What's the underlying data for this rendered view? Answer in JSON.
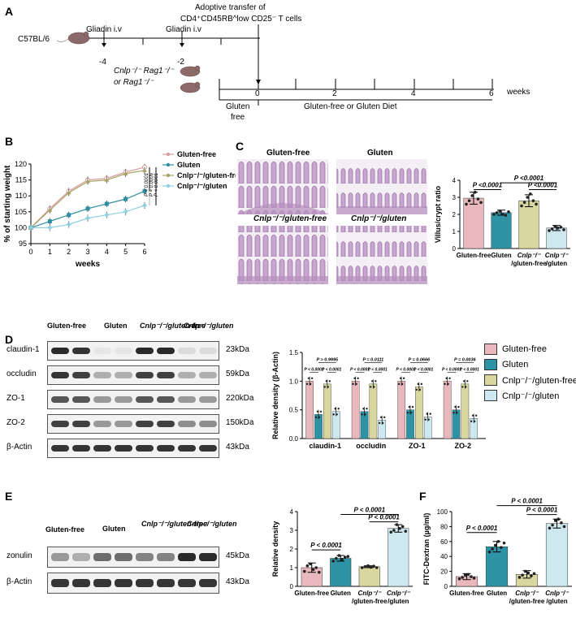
{
  "panels": {
    "A": "A",
    "B": "B",
    "C": "C",
    "D": "D",
    "E": "E",
    "F": "F"
  },
  "panelA": {
    "strain": "C57BL/6",
    "gliadin1": "Gliadin i.v",
    "gliadin2": "Gliadin i.v",
    "transfer_line1": "Adoptive transfer of",
    "transfer_line2": "CD4⁺CD45RB^low CD25⁻ T cells",
    "tick_m4": "-4",
    "tick_m2": "-2",
    "tick_0": "0",
    "tick_2": "2",
    "tick_4": "4",
    "tick_6": "6",
    "weeks": "weeks",
    "recipient1": "Cnlp⁻/⁻ Rag1⁻/⁻",
    "recipient2": "or Rag1⁻/⁻",
    "gluten_free_1": "Gluten",
    "gluten_free_2": "free",
    "diet": "Gluten-free or Gluten Diet"
  },
  "panelC": {
    "img1": "Gluten-free",
    "img2": "Gluten",
    "img3": "Cnlp⁻/⁻/gluten-free",
    "img4": "Cnlp⁻/⁻/gluten"
  },
  "panelD": {
    "lane_groups": [
      "Gluten-free",
      "Gluten",
      "Cnlp⁻/⁻/gluten-free",
      "Cnlp⁻/⁻/gluten"
    ],
    "proteins": [
      "claudin-1",
      "occludin",
      "ZO-1",
      "ZO-2",
      "β-Actin"
    ],
    "sizes": [
      "23kDa",
      "59kDa",
      "220kDa",
      "150kDa",
      "43kDa"
    ]
  },
  "panelE": {
    "lane_groups": [
      "Gluten-free",
      "Gluten",
      "Cnlp⁻/⁻/gluten-free",
      "Cnlp⁻/⁻/gluten"
    ],
    "proteins": [
      "zonulin",
      "β-Actin"
    ],
    "sizes": [
      "45kDa",
      "43kDa"
    ]
  },
  "legend_colors": {
    "gluten_free": "#e8b8bc",
    "gluten": "#2f93a6",
    "cnlp_gluten_free": "#d9d6a0",
    "cnlp_gluten": "#cde8ef"
  },
  "chart_data": [
    {
      "id": "B",
      "type": "line",
      "ylabel": "% of starting weight",
      "xlabel": "weeks",
      "x": [
        0,
        1,
        2,
        3,
        4,
        5,
        6
      ],
      "ylim": [
        95,
        120
      ],
      "yticks": [
        95,
        100,
        105,
        110,
        115,
        120
      ],
      "series": [
        {
          "name": "Gluten-free",
          "values": [
            100,
            106,
            111.5,
            115,
            115.5,
            117.5,
            119
          ],
          "color": "#d79aa0",
          "marker": "circle"
        },
        {
          "name": "Gluten",
          "values": [
            100,
            102,
            104,
            106,
            107.5,
            109,
            111.5
          ],
          "color": "#2f8ea3",
          "marker": "square"
        },
        {
          "name": "Cnlp⁻/⁻/gluten-free",
          "values": [
            100,
            105.5,
            111,
            114.5,
            115,
            117,
            118
          ],
          "color": "#a8a262",
          "marker": "triangle"
        },
        {
          "name": "Cnlp⁻/⁻/gluten",
          "values": [
            100,
            100,
            101,
            103,
            104,
            105,
            107
          ],
          "color": "#8fd0e0",
          "marker": "diamond"
        }
      ],
      "annotations": [
        "P < 0.0001",
        "P = 0.0006",
        "P < 0.0001"
      ]
    },
    {
      "id": "C",
      "type": "bar",
      "ylabel": "Villus/crypt ratio",
      "categories": [
        "Gluten-free",
        "Gluten",
        "Cnlp⁻/⁻ /gluten-free",
        "Cnlp⁻/⁻ /gluten"
      ],
      "values": [
        2.95,
        2.1,
        2.8,
        1.2
      ],
      "errors": [
        0.35,
        0.15,
        0.35,
        0.15
      ],
      "points": [
        [
          2.6,
          2.8,
          3.1,
          3.3,
          2.9,
          2.7
        ],
        [
          2.0,
          2.1,
          2.2,
          2.0,
          1.95,
          2.15
        ],
        [
          2.5,
          2.7,
          3.0,
          3.2,
          2.8,
          2.6
        ],
        [
          1.05,
          1.15,
          1.3,
          1.2,
          1.25,
          1.1
        ]
      ],
      "ylim": [
        0,
        4
      ],
      "yticks": [
        0,
        1,
        2,
        3,
        4
      ],
      "colors": [
        "#e8b8bc",
        "#2f93a6",
        "#d9d6a0",
        "#cde8ef"
      ],
      "brackets": [
        {
          "from": 0,
          "to": 1,
          "label": "P <0.0001",
          "level": 3.45
        },
        {
          "from": 1,
          "to": 3,
          "label": "P <0.0001",
          "level": 3.85
        },
        {
          "from": 2,
          "to": 3,
          "label": "P <0.0001",
          "level": 3.45
        }
      ]
    },
    {
      "id": "D",
      "type": "bar",
      "ylabel": "Relative density (β-Actin)",
      "categories": [
        "claudin-1",
        "occludin",
        "ZO-1",
        "ZO-2"
      ],
      "ylim": [
        0,
        1.5
      ],
      "yticks": [
        0.0,
        0.5,
        1.0,
        1.5
      ],
      "series": [
        {
          "name": "Gluten-free",
          "values": [
            1.0,
            1.0,
            1.0,
            1.0
          ],
          "color": "#e8b8bc"
        },
        {
          "name": "Gluten",
          "values": [
            0.42,
            0.47,
            0.5,
            0.5
          ],
          "color": "#2f93a6"
        },
        {
          "name": "Cnlp⁻/⁻/gluten-free",
          "values": [
            0.95,
            0.95,
            0.9,
            0.95
          ],
          "color": "#d9d6a0"
        },
        {
          "name": "Cnlp⁻/⁻/gluten",
          "values": [
            0.47,
            0.32,
            0.38,
            0.35
          ],
          "color": "#cde8ef"
        }
      ],
      "brackets_top": [
        "P > 0.9995",
        "P = 0.0111",
        "P = 0.0666",
        "P = 0.0036"
      ],
      "brackets_low": [
        "P < 0.0001",
        "P < 0.0001",
        "P < 0.0001",
        "P < 0.0001",
        "P < 0.0001",
        "P < 0.0001",
        "P < 0.0001",
        "P < 0.0001"
      ]
    },
    {
      "id": "E",
      "type": "bar",
      "ylabel": "Relative density",
      "categories": [
        "Gluten-free",
        "Gluten",
        "Cnlp⁻/⁻ /gluten-free",
        "Cnlp⁻/⁻ /gluten"
      ],
      "values": [
        1.0,
        1.5,
        1.05,
        3.1
      ],
      "errors": [
        0.25,
        0.15,
        0.05,
        0.2
      ],
      "points": [
        [
          0.8,
          1.1,
          1.2,
          0.9,
          1.0,
          0.75
        ],
        [
          1.35,
          1.5,
          1.65,
          1.45,
          1.55,
          1.6
        ],
        [
          1.0,
          1.05,
          1.1,
          1.02,
          1.08,
          1.0
        ],
        [
          2.9,
          3.0,
          3.3,
          3.1,
          3.2,
          2.95
        ]
      ],
      "ylim": [
        0,
        4
      ],
      "yticks": [
        0,
        1,
        2,
        3,
        4
      ],
      "colors": [
        "#e8b8bc",
        "#2f93a6",
        "#d9d6a0",
        "#cde8ef"
      ],
      "brackets": [
        {
          "from": 0,
          "to": 1,
          "label": "P < 0.0001",
          "level": 1.95
        },
        {
          "from": 1,
          "to": 3,
          "label": "P < 0.0001",
          "level": 3.85
        },
        {
          "from": 2,
          "to": 3,
          "label": "P < 0.0001",
          "level": 3.45
        }
      ]
    },
    {
      "id": "F",
      "type": "bar",
      "ylabel": "FITC-Dextran (µg/ml)",
      "categories": [
        "Gluten-free",
        "Gluten",
        "Cnlp⁻/⁻ /gluten-free",
        "Cnlp⁻/⁻ /gluten"
      ],
      "values": [
        13,
        53,
        16,
        84
      ],
      "errors": [
        4,
        7,
        5,
        6
      ],
      "points": [
        [
          10,
          12,
          15,
          16,
          13,
          11
        ],
        [
          46,
          50,
          55,
          60,
          52,
          58
        ],
        [
          12,
          15,
          20,
          18,
          14,
          17
        ],
        [
          78,
          82,
          88,
          90,
          85,
          80
        ]
      ],
      "ylim": [
        0,
        100
      ],
      "yticks": [
        0,
        20,
        40,
        60,
        80,
        100
      ],
      "colors": [
        "#e8b8bc",
        "#2f93a6",
        "#d9d6a0",
        "#cde8ef"
      ],
      "brackets": [
        {
          "from": 0,
          "to": 1,
          "label": "P < 0.0001",
          "level": 72
        },
        {
          "from": 1,
          "to": 3,
          "label": "P < 0.0001",
          "level": 108
        },
        {
          "from": 2,
          "to": 3,
          "label": "P < 0.0001",
          "level": 96
        }
      ]
    }
  ]
}
